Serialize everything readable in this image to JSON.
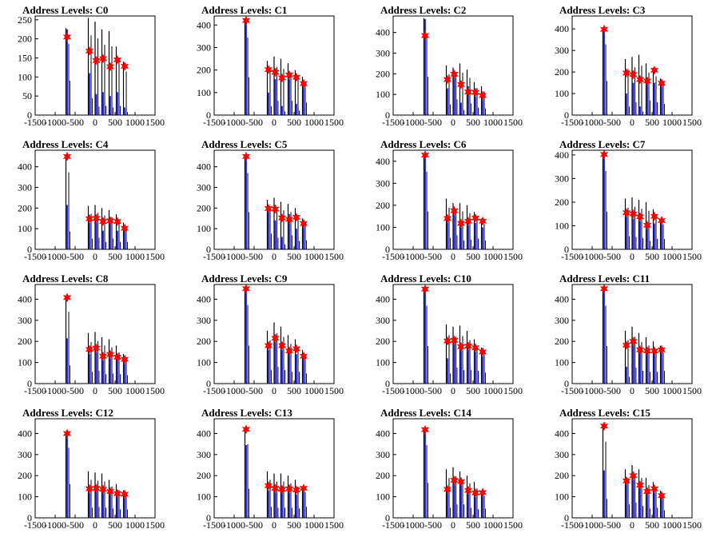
{
  "figure": {
    "title_prefix": "Address Levels: "
  },
  "colors": {
    "histogram_outline": "#000000",
    "histogram_fill": "#0000ff",
    "peak_marker": "#ff0000"
  },
  "chart_data": [
    {
      "type": "bar",
      "title": "Address Levels: C0",
      "xlim": [
        -1500,
        1500
      ],
      "ylim": [
        0,
        260
      ],
      "yticks": [
        0,
        50,
        100,
        150,
        200,
        250
      ],
      "xticks": [
        -1500,
        -1000,
        -500,
        0,
        500,
        1000,
        1500
      ],
      "peaks": {
        "x": [
          -700,
          -140,
          30,
          200,
          380,
          560,
          740
        ],
        "y": [
          205,
          168,
          143,
          148,
          127,
          145,
          128
        ]
      },
      "histogram": {
        "x": [
          -700,
          -140,
          30,
          200,
          380,
          560,
          740
        ],
        "black": [
          228,
          255,
          245,
          225,
          220,
          180,
          140
        ],
        "blue": [
          225,
          110,
          55,
          60,
          50,
          60,
          20
        ]
      }
    },
    {
      "type": "bar",
      "title": "Address Levels: C1",
      "xlim": [
        -1500,
        1500
      ],
      "ylim": [
        0,
        440
      ],
      "yticks": [
        0,
        100,
        200,
        300,
        400
      ],
      "xticks": [
        -1500,
        -1000,
        -500,
        0,
        500,
        1000,
        1500
      ],
      "peaks": {
        "x": [
          -700,
          -140,
          30,
          200,
          380,
          560,
          740
        ],
        "y": [
          420,
          202,
          190,
          165,
          178,
          168,
          140
        ]
      },
      "histogram": {
        "x": [
          -700,
          -140,
          30,
          200,
          380,
          560,
          740
        ],
        "black": [
          420,
          240,
          260,
          250,
          230,
          200,
          170
        ],
        "blue": [
          420,
          100,
          160,
          40,
          160,
          50,
          140
        ]
      }
    },
    {
      "type": "bar",
      "title": "Address Levels: C2",
      "xlim": [
        -1500,
        1500
      ],
      "ylim": [
        0,
        480
      ],
      "yticks": [
        0,
        100,
        200,
        300,
        400
      ],
      "xticks": [
        -1500,
        -1000,
        -500,
        0,
        500,
        1000,
        1500
      ],
      "peaks": {
        "x": [
          -700,
          -140,
          30,
          200,
          380,
          560,
          740
        ],
        "y": [
          385,
          172,
          198,
          148,
          112,
          110,
          95
        ]
      },
      "histogram": {
        "x": [
          -700,
          -140,
          30,
          200,
          380,
          560,
          740
        ],
        "black": [
          470,
          240,
          230,
          250,
          220,
          160,
          140
        ],
        "blue": [
          465,
          130,
          190,
          60,
          140,
          90,
          80
        ]
      }
    },
    {
      "type": "bar",
      "title": "Address Levels: C3",
      "xlim": [
        -1500,
        1500
      ],
      "ylim": [
        0,
        460
      ],
      "yticks": [
        0,
        100,
        200,
        300,
        400
      ],
      "xticks": [
        -1500,
        -1000,
        -500,
        0,
        500,
        1000,
        1500
      ],
      "peaks": {
        "x": [
          -700,
          -140,
          30,
          200,
          380,
          560,
          740
        ],
        "y": [
          398,
          195,
          188,
          165,
          158,
          208,
          148
        ]
      },
      "histogram": {
        "x": [
          -700,
          -140,
          30,
          200,
          380,
          560,
          740
        ],
        "black": [
          400,
          260,
          270,
          280,
          240,
          220,
          170
        ],
        "blue": [
          395,
          100,
          150,
          40,
          170,
          150,
          130
        ]
      }
    },
    {
      "type": "bar",
      "title": "Address Levels: C4",
      "xlim": [
        -1500,
        1500
      ],
      "ylim": [
        0,
        480
      ],
      "yticks": [
        0,
        100,
        200,
        300,
        400
      ],
      "xticks": [
        -1500,
        -1000,
        -500,
        0,
        500,
        1000,
        1500
      ],
      "peaks": {
        "x": [
          -700,
          -140,
          30,
          200,
          380,
          560,
          740
        ],
        "y": [
          450,
          148,
          150,
          135,
          138,
          135,
          102
        ]
      },
      "histogram": {
        "x": [
          -700,
          -140,
          30,
          200,
          380,
          560,
          740
        ],
        "black": [
          455,
          210,
          215,
          200,
          190,
          170,
          130
        ],
        "blue": [
          215,
          130,
          140,
          90,
          130,
          90,
          90
        ]
      }
    },
    {
      "type": "bar",
      "title": "Address Levels: C5",
      "xlim": [
        -1500,
        1500
      ],
      "ylim": [
        0,
        480
      ],
      "yticks": [
        0,
        100,
        200,
        300,
        400
      ],
      "xticks": [
        -1500,
        -1000,
        -500,
        0,
        500,
        1000,
        1500
      ],
      "peaks": {
        "x": [
          -700,
          -140,
          30,
          200,
          380,
          560,
          740
        ],
        "y": [
          450,
          198,
          195,
          152,
          145,
          155,
          125
        ]
      },
      "histogram": {
        "x": [
          -700,
          -140,
          30,
          200,
          380,
          560,
          740
        ],
        "black": [
          450,
          240,
          250,
          230,
          220,
          200,
          150
        ],
        "blue": [
          450,
          190,
          140,
          60,
          170,
          100,
          110
        ]
      }
    },
    {
      "type": "bar",
      "title": "Address Levels: C6",
      "xlim": [
        -1500,
        1500
      ],
      "ylim": [
        0,
        450
      ],
      "yticks": [
        0,
        100,
        200,
        300,
        400
      ],
      "xticks": [
        -1500,
        -1000,
        -500,
        0,
        500,
        1000,
        1500
      ],
      "peaks": {
        "x": [
          -700,
          -140,
          30,
          200,
          380,
          560,
          740
        ],
        "y": [
          428,
          140,
          175,
          118,
          128,
          142,
          128
        ]
      },
      "histogram": {
        "x": [
          -700,
          -140,
          30,
          200,
          380,
          560,
          740
        ],
        "black": [
          430,
          230,
          210,
          210,
          200,
          170,
          140
        ],
        "blue": [
          430,
          130,
          160,
          100,
          110,
          120,
          100
        ]
      }
    },
    {
      "type": "bar",
      "title": "Address Levels: C7",
      "xlim": [
        -1500,
        1500
      ],
      "ylim": [
        0,
        420
      ],
      "yticks": [
        0,
        100,
        200,
        300,
        400
      ],
      "xticks": [
        -1500,
        -1000,
        -500,
        0,
        500,
        1000,
        1500
      ],
      "peaks": {
        "x": [
          -700,
          -140,
          30,
          200,
          380,
          560,
          740
        ],
        "y": [
          402,
          155,
          150,
          138,
          102,
          140,
          122
        ]
      },
      "histogram": {
        "x": [
          -700,
          -140,
          30,
          200,
          380,
          560,
          740
        ],
        "black": [
          405,
          215,
          220,
          210,
          200,
          170,
          130
        ],
        "blue": [
          400,
          140,
          130,
          120,
          90,
          110,
          110
        ]
      }
    },
    {
      "type": "bar",
      "title": "Address Levels: C8",
      "xlim": [
        -1500,
        1500
      ],
      "ylim": [
        0,
        470
      ],
      "yticks": [
        0,
        100,
        200,
        300,
        400
      ],
      "xticks": [
        -1500,
        -1000,
        -500,
        0,
        500,
        1000,
        1500
      ],
      "peaks": {
        "x": [
          -700,
          -140,
          30,
          200,
          380,
          560,
          740
        ],
        "y": [
          408,
          162,
          168,
          130,
          138,
          125,
          115
        ]
      },
      "histogram": {
        "x": [
          -700,
          -140,
          30,
          200,
          380,
          560,
          740
        ],
        "black": [
          415,
          240,
          245,
          220,
          210,
          180,
          140
        ],
        "blue": [
          215,
          140,
          150,
          110,
          120,
          110,
          100
        ]
      }
    },
    {
      "type": "bar",
      "title": "Address Levels: C9",
      "xlim": [
        -1500,
        1500
      ],
      "ylim": [
        0,
        470
      ],
      "yticks": [
        0,
        100,
        200,
        300,
        400
      ],
      "xticks": [
        -1500,
        -1000,
        -500,
        0,
        500,
        1000,
        1500
      ],
      "peaks": {
        "x": [
          -700,
          -140,
          30,
          200,
          380,
          560,
          740
        ],
        "y": [
          450,
          180,
          215,
          180,
          155,
          165,
          130
        ]
      },
      "histogram": {
        "x": [
          -700,
          -140,
          30,
          200,
          380,
          560,
          740
        ],
        "black": [
          455,
          250,
          290,
          270,
          230,
          210,
          160
        ],
        "blue": [
          450,
          160,
          200,
          160,
          140,
          140,
          120
        ]
      }
    },
    {
      "type": "bar",
      "title": "Address Levels: C10",
      "xlim": [
        -1500,
        1500
      ],
      "ylim": [
        0,
        470
      ],
      "yticks": [
        0,
        100,
        200,
        300,
        400
      ],
      "xticks": [
        -1500,
        -1000,
        -500,
        0,
        500,
        1000,
        1500
      ],
      "peaks": {
        "x": [
          -700,
          -140,
          30,
          200,
          380,
          560,
          740
        ],
        "y": [
          448,
          202,
          205,
          175,
          178,
          170,
          150
        ]
      },
      "histogram": {
        "x": [
          -700,
          -140,
          30,
          200,
          380,
          560,
          740
        ],
        "black": [
          450,
          280,
          270,
          275,
          250,
          210,
          170
        ],
        "blue": [
          445,
          120,
          190,
          160,
          160,
          150,
          130
        ]
      }
    },
    {
      "type": "bar",
      "title": "Address Levels: C11",
      "xlim": [
        -1500,
        1500
      ],
      "ylim": [
        0,
        470
      ],
      "yticks": [
        0,
        100,
        200,
        300,
        400
      ],
      "xticks": [
        -1500,
        -1000,
        -500,
        0,
        500,
        1000,
        1500
      ],
      "peaks": {
        "x": [
          -700,
          -140,
          30,
          200,
          380,
          560,
          740
        ],
        "y": [
          450,
          182,
          200,
          160,
          155,
          155,
          160
        ]
      },
      "histogram": {
        "x": [
          -700,
          -140,
          30,
          200,
          380,
          560,
          740
        ],
        "black": [
          450,
          250,
          270,
          240,
          220,
          200,
          180
        ],
        "blue": [
          445,
          80,
          190,
          150,
          140,
          140,
          150
        ]
      }
    },
    {
      "type": "bar",
      "title": "Address Levels: C12",
      "xlim": [
        -1500,
        1500
      ],
      "ylim": [
        0,
        470
      ],
      "yticks": [
        0,
        100,
        200,
        300,
        400
      ],
      "xticks": [
        -1500,
        -1000,
        -500,
        0,
        500,
        1000,
        1500
      ],
      "peaks": {
        "x": [
          -700,
          -140,
          30,
          200,
          380,
          560,
          740
        ],
        "y": [
          400,
          138,
          140,
          135,
          125,
          115,
          112
        ]
      },
      "histogram": {
        "x": [
          -700,
          -140,
          30,
          200,
          380,
          560,
          740
        ],
        "black": [
          405,
          220,
          215,
          210,
          180,
          160,
          130
        ],
        "blue": [
          400,
          120,
          130,
          120,
          110,
          100,
          100
        ]
      }
    },
    {
      "type": "bar",
      "title": "Address Levels: C13",
      "xlim": [
        -1500,
        1500
      ],
      "ylim": [
        0,
        470
      ],
      "yticks": [
        0,
        100,
        200,
        300,
        400
      ],
      "xticks": [
        -1500,
        -1000,
        -500,
        0,
        500,
        1000,
        1500
      ],
      "peaks": {
        "x": [
          -700,
          -140,
          30,
          200,
          380,
          560,
          740
        ],
        "y": [
          420,
          152,
          140,
          135,
          138,
          132,
          140
        ]
      },
      "histogram": {
        "x": [
          -700,
          -140,
          30,
          200,
          380,
          560,
          740
        ],
        "black": [
          425,
          220,
          210,
          210,
          200,
          180,
          150
        ],
        "blue": [
          345,
          130,
          120,
          120,
          120,
          110,
          130
        ]
      }
    },
    {
      "type": "bar",
      "title": "Address Levels: C14",
      "xlim": [
        -1500,
        1500
      ],
      "ylim": [
        0,
        470
      ],
      "yticks": [
        0,
        100,
        200,
        300,
        400
      ],
      "xticks": [
        -1500,
        -1000,
        -500,
        0,
        500,
        1000,
        1500
      ],
      "peaks": {
        "x": [
          -700,
          -140,
          30,
          200,
          380,
          560,
          740
        ],
        "y": [
          418,
          135,
          178,
          172,
          130,
          118,
          120
        ]
      },
      "histogram": {
        "x": [
          -700,
          -140,
          30,
          200,
          380,
          560,
          740
        ],
        "black": [
          420,
          230,
          240,
          220,
          200,
          170,
          130
        ],
        "blue": [
          415,
          120,
          160,
          160,
          120,
          100,
          110
        ]
      }
    },
    {
      "type": "bar",
      "title": "Address Levels: C15",
      "xlim": [
        -1500,
        1500
      ],
      "ylim": [
        0,
        470
      ],
      "yticks": [
        0,
        100,
        200,
        300,
        400
      ],
      "xticks": [
        -1500,
        -1000,
        -500,
        0,
        500,
        1000,
        1500
      ],
      "peaks": {
        "x": [
          -700,
          -140,
          30,
          200,
          380,
          560,
          740
        ],
        "y": [
          435,
          175,
          200,
          155,
          125,
          138,
          105
        ]
      },
      "histogram": {
        "x": [
          -700,
          -140,
          30,
          200,
          380,
          560,
          740
        ],
        "black": [
          440,
          230,
          250,
          230,
          190,
          170,
          130
        ],
        "blue": [
          225,
          160,
          180,
          140,
          110,
          120,
          90
        ]
      }
    }
  ]
}
